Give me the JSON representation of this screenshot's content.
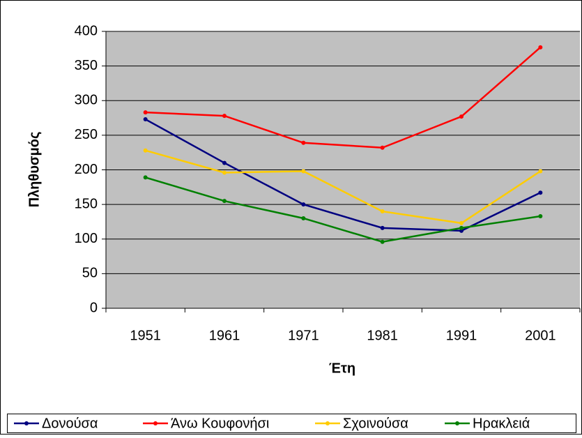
{
  "chart_data": {
    "type": "line",
    "x_label": "Έτη",
    "y_label": "Πληθυσμός",
    "categories": [
      "1951",
      "1961",
      "1971",
      "1981",
      "1991",
      "2001"
    ],
    "series": [
      {
        "name": "Δονούσα",
        "color": "#000080",
        "values": [
          273,
          210,
          150,
          116,
          112,
          167
        ]
      },
      {
        "name": "Άνω Κουφονήσι",
        "color": "#ff0000",
        "values": [
          283,
          278,
          239,
          232,
          277,
          377
        ]
      },
      {
        "name": "Σχοινούσα",
        "color": "#ffcc00",
        "values": [
          228,
          196,
          198,
          140,
          123,
          198
        ]
      },
      {
        "name": "Ηρακλειά",
        "color": "#008000",
        "values": [
          189,
          155,
          130,
          96,
          116,
          133
        ]
      }
    ],
    "ylim": [
      0,
      400
    ],
    "yticks": [
      0,
      50,
      100,
      150,
      200,
      250,
      300,
      350,
      400
    ],
    "grid": true,
    "legend": "bottom"
  }
}
